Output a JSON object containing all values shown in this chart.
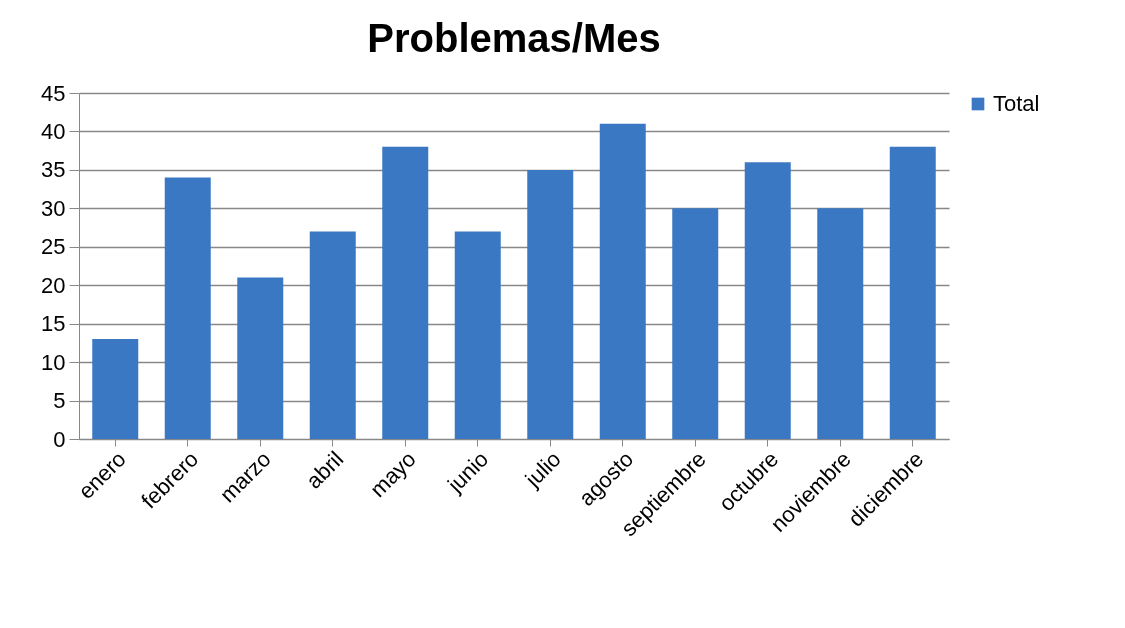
{
  "chart_data": {
    "type": "bar",
    "title": "Problemas/Mes",
    "categories": [
      "enero",
      "febrero",
      "marzo",
      "abril",
      "mayo",
      "junio",
      "julio",
      "agosto",
      "septiembre",
      "octubre",
      "noviembre",
      "diciembre"
    ],
    "series": [
      {
        "name": "Total",
        "color": "#3b78c4",
        "values": [
          13,
          34,
          21,
          27,
          38,
          27,
          35,
          41,
          30,
          36,
          30,
          38
        ]
      }
    ],
    "ylim": [
      0,
      45
    ],
    "yticks": [
      0,
      5,
      10,
      15,
      20,
      25,
      30,
      35,
      40,
      45
    ],
    "grid": "y",
    "legend": "right"
  }
}
